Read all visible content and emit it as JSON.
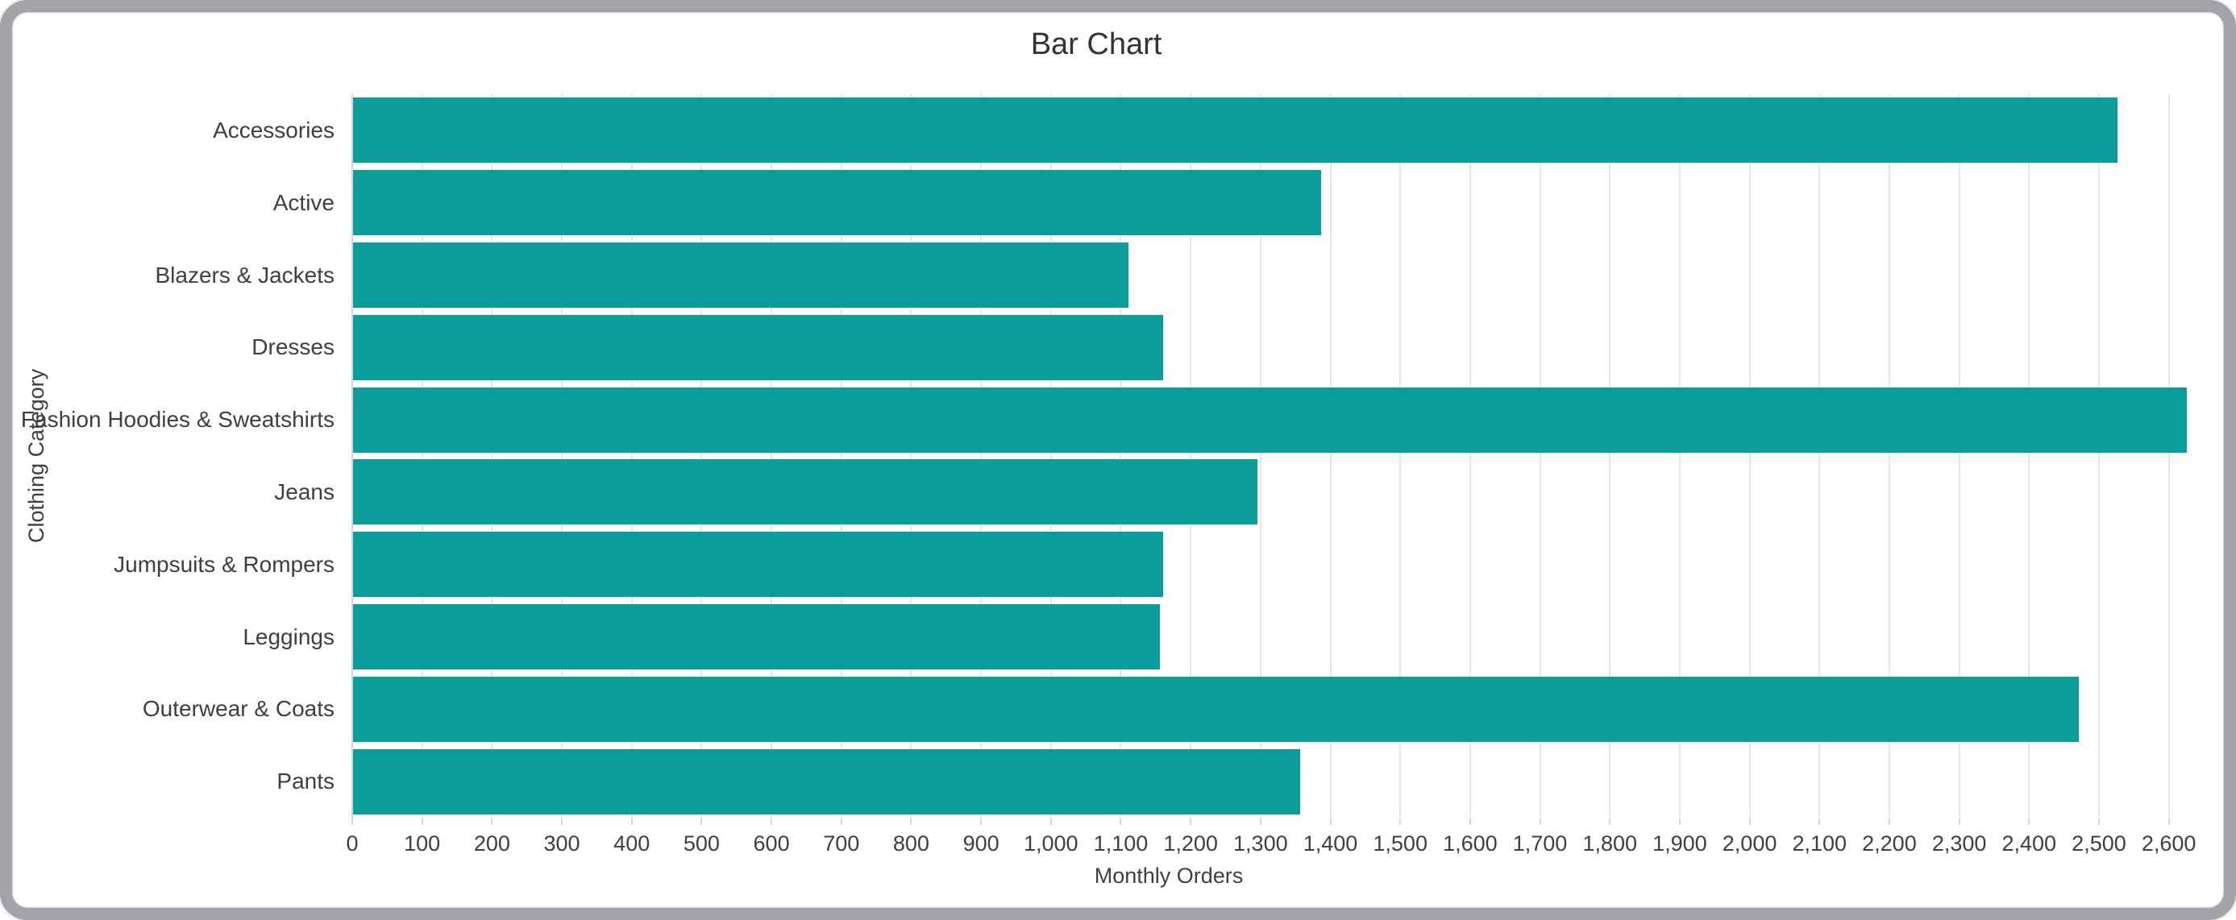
{
  "window": {
    "frame_color": "#a2a4a9",
    "background_color": "#ffffff"
  },
  "chart_data": {
    "type": "bar",
    "orientation": "horizontal",
    "title": "Bar Chart",
    "xlabel": "Monthly Orders",
    "ylabel": "Clothing Category",
    "categories": [
      "Accessories",
      "Active",
      "Blazers & Jackets",
      "Dresses",
      "Fashion Hoodies & Sweatshirts",
      "Jeans",
      "Jumpsuits & Rompers",
      "Leggings",
      "Outerwear & Coats",
      "Pants"
    ],
    "values": [
      2525,
      1385,
      1110,
      1160,
      2625,
      1295,
      1160,
      1155,
      2470,
      1355
    ],
    "xlim": [
      0,
      2650
    ],
    "tick_step": 100,
    "xtick_labels": [
      "0",
      "100",
      "200",
      "300",
      "400",
      "500",
      "600",
      "700",
      "800",
      "900",
      "1,000",
      "1,100",
      "1,200",
      "1,300",
      "1,400",
      "1,500",
      "1,600",
      "1,700",
      "1,800",
      "1,900",
      "2,000",
      "2,100",
      "2,200",
      "2,300",
      "2,400",
      "2,500",
      "2,600"
    ],
    "grid": true,
    "legend": "none",
    "bar_color": "#0a9d99",
    "grid_color": "#e6e6e6",
    "axis_line_color": "#ccd6eb",
    "title_color": "#333333",
    "label_color": "#3c4043"
  }
}
